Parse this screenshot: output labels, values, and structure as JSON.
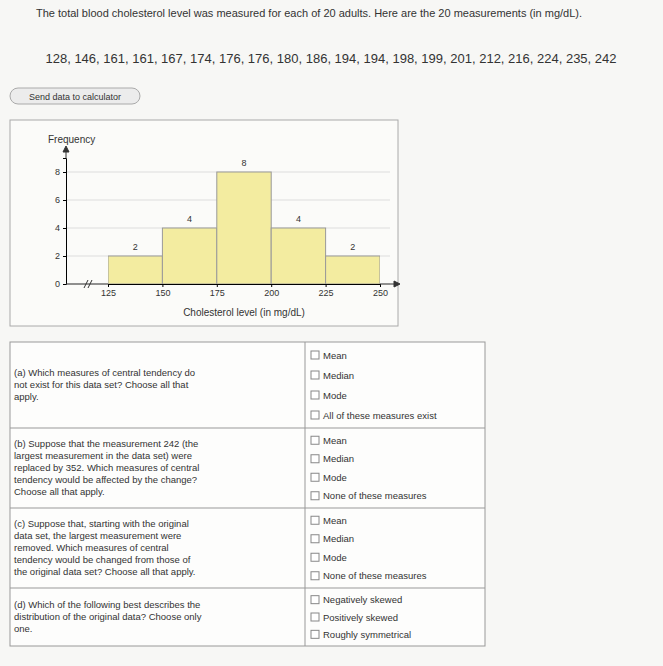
{
  "header": {
    "intro": "The total blood cholesterol level was measured for each of 20 adults. Here are the 20 measurements (in mg/dL).",
    "data": "128, 146, 161, 161, 167, 174, 176, 176, 180, 186, 194, 194, 198, 199, 201, 212, 216, 224, 235, 242",
    "button": "Send data to calculator"
  },
  "chart_data": {
    "type": "histogram",
    "y_label": "Frequency",
    "x_label": "Cholesterol level (in mg/dL)",
    "bins": [
      125,
      150,
      175,
      200,
      225,
      250
    ],
    "values": [
      2,
      4,
      8,
      4,
      2
    ],
    "color": "#f3eca0",
    "xlim": [
      125,
      250
    ],
    "xticks": [
      125,
      150,
      175,
      200,
      225,
      250
    ],
    "ylim": [
      0,
      9
    ],
    "yticks": [
      0,
      2,
      4,
      6,
      8
    ],
    "grid": true,
    "data_labels": true
  },
  "questions": [
    {
      "lines": [
        "(a) Which measures of central tendency do",
        "not exist for this data set? Choose all that",
        "apply."
      ],
      "options": [
        "Mean",
        "Median",
        "Mode",
        "All of these measures exist"
      ]
    },
    {
      "lines": [
        "(b) Suppose that the measurement 242 (the",
        "largest measurement in the data set) were",
        "replaced by 352. Which measures of central",
        "tendency would be affected by the change?",
        "Choose all that apply."
      ],
      "options": [
        "Mean",
        "Median",
        "Mode",
        "None of these measures"
      ]
    },
    {
      "lines": [
        "(c) Suppose that, starting with the original",
        "data set, the largest measurement were",
        "removed. Which measures of central",
        "tendency would be changed from those of",
        "the original data set? Choose all that apply."
      ],
      "options": [
        "Mean",
        "Median",
        "Mode",
        "None of these measures"
      ]
    },
    {
      "lines": [
        "(d) Which of the following best describes the",
        "distribution of the original data? Choose only",
        "one."
      ],
      "options": [
        "Negatively skewed",
        "Positively skewed",
        "Roughly symmetrical"
      ]
    }
  ]
}
